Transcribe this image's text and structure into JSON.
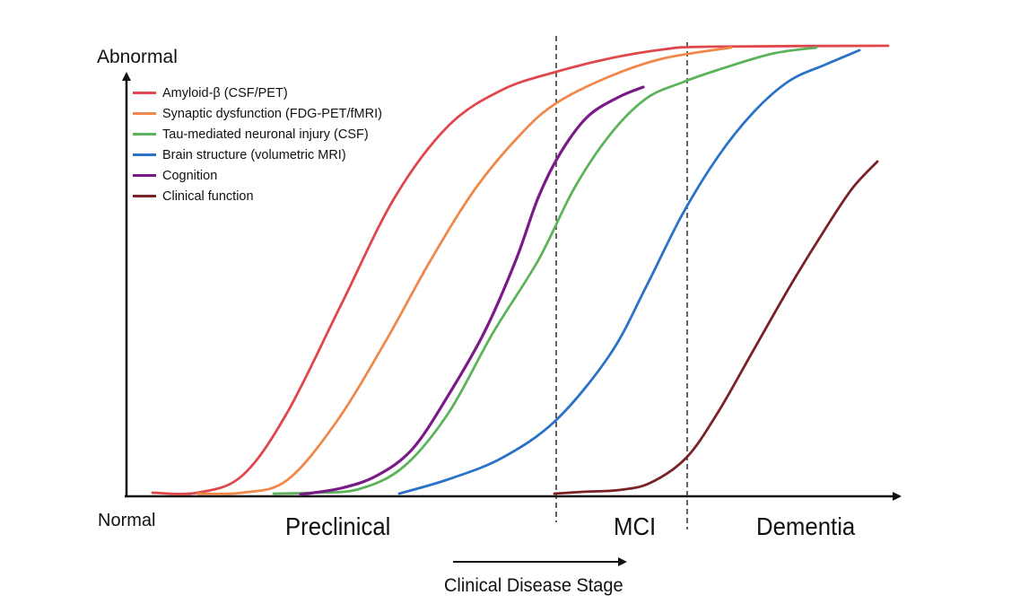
{
  "chart_data": {
    "type": "line",
    "y_axis": {
      "top_label": "Abnormal",
      "bottom_label": "Normal"
    },
    "x_axis": {
      "caption": "Clinical Disease Stage",
      "stages": [
        "Preclinical",
        "MCI",
        "Dementia"
      ]
    },
    "grid": false,
    "legend_position": "top-left",
    "series": [
      {
        "name": "Amyloid-β (CSF/PET)",
        "color": "#e0474c",
        "points": [
          [
            170,
            549
          ],
          [
            220,
            549
          ],
          [
            270,
            530
          ],
          [
            320,
            460
          ],
          [
            380,
            340
          ],
          [
            440,
            220
          ],
          [
            500,
            140
          ],
          [
            560,
            100
          ],
          [
            620,
            80
          ],
          [
            680,
            65
          ],
          [
            740,
            55
          ],
          [
            790,
            52
          ],
          [
            990,
            51
          ]
        ]
      },
      {
        "name": "Synaptic dysfunction (FDG-PET/fMRI)",
        "color": "#f0884a",
        "points": [
          [
            220,
            550
          ],
          [
            270,
            549
          ],
          [
            320,
            535
          ],
          [
            375,
            470
          ],
          [
            430,
            380
          ],
          [
            480,
            290
          ],
          [
            530,
            210
          ],
          [
            580,
            150
          ],
          [
            620,
            115
          ],
          [
            680,
            85
          ],
          [
            740,
            65
          ],
          [
            815,
            53
          ]
        ]
      },
      {
        "name": "Tau-mediated neuronal injury (CSF)",
        "color": "#5bb45c",
        "points": [
          [
            305,
            550
          ],
          [
            350,
            549
          ],
          [
            400,
            545
          ],
          [
            450,
            520
          ],
          [
            500,
            460
          ],
          [
            550,
            370
          ],
          [
            600,
            290
          ],
          [
            640,
            210
          ],
          [
            680,
            150
          ],
          [
            720,
            110
          ],
          [
            760,
            92
          ],
          [
            800,
            78
          ],
          [
            860,
            60
          ],
          [
            910,
            53
          ]
        ]
      },
      {
        "name": "Brain structure (volumetric MRI)",
        "color": "#2a72c8",
        "points": [
          [
            445,
            550
          ],
          [
            500,
            534
          ],
          [
            560,
            510
          ],
          [
            620,
            468
          ],
          [
            680,
            395
          ],
          [
            720,
            320
          ],
          [
            760,
            240
          ],
          [
            800,
            175
          ],
          [
            840,
            125
          ],
          [
            880,
            90
          ],
          [
            920,
            72
          ],
          [
            958,
            56
          ]
        ]
      },
      {
        "name": "Cognition",
        "color": "#7a1a88",
        "points": [
          [
            335,
            551
          ],
          [
            380,
            544
          ],
          [
            420,
            530
          ],
          [
            460,
            500
          ],
          [
            500,
            440
          ],
          [
            540,
            370
          ],
          [
            575,
            290
          ],
          [
            600,
            220
          ],
          [
            625,
            170
          ],
          [
            655,
            130
          ],
          [
            690,
            108
          ],
          [
            717,
            97
          ]
        ]
      },
      {
        "name": "Clinical function",
        "color": "#7a2226",
        "points": [
          [
            618,
            550
          ],
          [
            650,
            548
          ],
          [
            690,
            546
          ],
          [
            725,
            538
          ],
          [
            765,
            510
          ],
          [
            800,
            460
          ],
          [
            840,
            390
          ],
          [
            880,
            320
          ],
          [
            920,
            255
          ],
          [
            950,
            210
          ],
          [
            978,
            180
          ]
        ]
      }
    ]
  }
}
